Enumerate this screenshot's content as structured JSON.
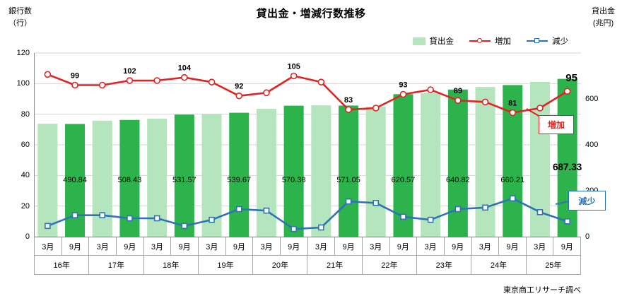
{
  "title": "貸出金・増減行数推移",
  "left_axis": {
    "title_line1": "銀行数",
    "title_line2": "（行）",
    "ticks": [
      0,
      20,
      40,
      60,
      80,
      100,
      120
    ],
    "max": 120
  },
  "right_axis": {
    "title_line1": "貸出金",
    "title_line2": "(兆円)",
    "ticks": [
      0,
      200,
      400,
      600
    ],
    "max": 800
  },
  "legend": [
    {
      "label": "貸出金",
      "type": "bar",
      "color": "#b4e5bc"
    },
    {
      "label": "増加",
      "type": "line-circle",
      "color": "#e02424"
    },
    {
      "label": "減少",
      "type": "line-square",
      "color": "#2e74b5"
    }
  ],
  "annotations": [
    {
      "label": "増加",
      "color": "#e02424"
    },
    {
      "label": "減少",
      "color": "#2e74b5"
    }
  ],
  "source": "東京商工リサーチ調べ",
  "chart_data": {
    "type": "combo: bar + line + line",
    "years": [
      "16年",
      "17年",
      "18年",
      "19年",
      "20年",
      "21年",
      "22年",
      "23年",
      "24年",
      "25年"
    ],
    "months": [
      "3月",
      "9月",
      "3月",
      "9月",
      "3月",
      "9月",
      "3月",
      "9月",
      "3月",
      "9月",
      "3月",
      "9月",
      "3月",
      "9月",
      "3月",
      "9月",
      "3月",
      "9月",
      "3月",
      "9月"
    ],
    "left_axis_range": [
      0,
      120
    ],
    "right_axis_range": [
      0,
      800
    ],
    "grid": "horizontal",
    "legend_position": "top-right",
    "series": [
      {
        "name": "貸出金",
        "type": "bar",
        "axis": "right",
        "unit": "兆円",
        "color_light": "#b4e5bc",
        "color_dark": "#2cb34c",
        "values": [
          492,
          490.84,
          505,
          508.43,
          514,
          531.57,
          535,
          539.67,
          557,
          570.38,
          572,
          571.05,
          566,
          620.57,
          625,
          640.82,
          652,
          660.21,
          674,
          687.33
        ],
        "data_labels": [
          null,
          "490.84",
          null,
          "508.43",
          null,
          "531.57",
          null,
          "539.67",
          null,
          "570.38",
          null,
          "571.05",
          null,
          "620.57",
          null,
          "640.82",
          null,
          "660.21",
          null,
          "687.33"
        ]
      },
      {
        "name": "増加",
        "type": "line",
        "axis": "left",
        "unit": "行",
        "color": "#e02424",
        "marker": "circle",
        "values": [
          106,
          99,
          99,
          102,
          102,
          104,
          101,
          92,
          94,
          105,
          101,
          83,
          84,
          93,
          96,
          89,
          88,
          81,
          84,
          95
        ],
        "data_labels": [
          null,
          "99",
          null,
          "102",
          null,
          "104",
          null,
          "92",
          null,
          "105",
          null,
          "83",
          null,
          "93",
          null,
          "89",
          null,
          "81",
          null,
          "95"
        ]
      },
      {
        "name": "減少",
        "type": "line",
        "axis": "left",
        "unit": "行",
        "color": "#2e74b5",
        "marker": "square",
        "values": [
          7,
          14,
          14,
          12,
          12,
          7,
          11,
          18,
          17,
          5,
          6,
          23,
          22,
          13,
          11,
          18,
          19,
          25,
          16,
          10
        ],
        "data_labels": null
      }
    ]
  }
}
